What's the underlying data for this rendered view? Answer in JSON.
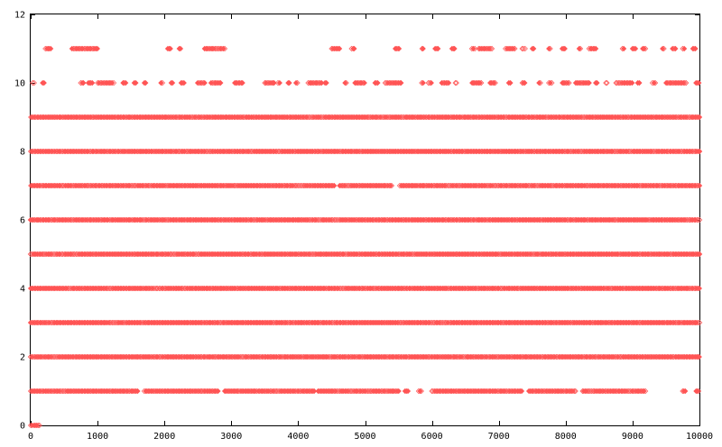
{
  "chart_data": {
    "type": "scatter",
    "title": "",
    "xlabel": "",
    "ylabel": "",
    "xlim": [
      0,
      10000
    ],
    "ylim": [
      0,
      12
    ],
    "x_ticks": [
      0,
      1000,
      2000,
      3000,
      4000,
      5000,
      6000,
      7000,
      8000,
      9000,
      10000
    ],
    "y_ticks": [
      0,
      2,
      4,
      6,
      8,
      10,
      12
    ],
    "x_tick_labels": [
      "0",
      "1000",
      "2000",
      "3000",
      "4000",
      "5000",
      "6000",
      "7000",
      "8000",
      "9000",
      "10000"
    ],
    "y_tick_labels": [
      "0",
      "2",
      "4",
      "6",
      "8",
      "10",
      "12"
    ],
    "grid": false,
    "marker": "diamond",
    "point_color": "#ff5555",
    "series": [
      {
        "points_by_level": {
          "0": [
            [
              0,
              30
            ],
            [
              50,
              130
            ]
          ],
          "1": [
            [
              0,
              1600
            ],
            [
              1700,
              2800
            ],
            [
              2900,
              4250
            ],
            [
              4300,
              5500
            ],
            [
              5600,
              5650
            ],
            [
              5800,
              5850
            ],
            [
              6000,
              7350
            ],
            [
              7450,
              8150
            ],
            [
              8250,
              9200
            ],
            [
              9750,
              9800
            ],
            [
              9950,
              10000
            ]
          ],
          "2": [
            [
              0,
              10000
            ]
          ],
          "3": [
            [
              0,
              10000
            ]
          ],
          "4": [
            [
              0,
              10000
            ]
          ],
          "5": [
            [
              0,
              10000
            ]
          ],
          "6": [
            [
              0,
              10000
            ]
          ],
          "7": [
            [
              0,
              4550
            ],
            [
              4620,
              5400
            ],
            [
              5520,
              10000
            ]
          ],
          "8": [
            [
              0,
              10000
            ]
          ],
          "9": [
            [
              0,
              10000
            ]
          ],
          "10": [
            [
              30,
              50
            ],
            [
              180,
              200
            ],
            [
              750,
              800
            ],
            [
              860,
              920
            ],
            [
              1000,
              1250
            ],
            [
              1380,
              1420
            ],
            [
              1550,
              1570
            ],
            [
              1700,
              1730
            ],
            [
              1950,
              1980
            ],
            [
              2100,
              2120
            ],
            [
              2250,
              2300
            ],
            [
              2500,
              2600
            ],
            [
              2700,
              2850
            ],
            [
              3050,
              3180
            ],
            [
              3500,
              3650
            ],
            [
              3700,
              3720
            ],
            [
              3850,
              3870
            ],
            [
              3970,
              4000
            ],
            [
              4150,
              4350
            ],
            [
              4400,
              4420
            ],
            [
              4700,
              4720
            ],
            [
              4850,
              5000
            ],
            [
              5150,
              5200
            ],
            [
              5300,
              5550
            ],
            [
              5850,
              5870
            ],
            [
              5950,
              6000
            ],
            [
              6150,
              6250
            ],
            [
              6350,
              6380
            ],
            [
              6600,
              6750
            ],
            [
              6870,
              6950
            ],
            [
              7150,
              7170
            ],
            [
              7350,
              7400
            ],
            [
              7600,
              7630
            ],
            [
              7750,
              7800
            ],
            [
              7950,
              8050
            ],
            [
              8150,
              8350
            ],
            [
              8450,
              8480
            ],
            [
              8600,
              8620
            ],
            [
              8750,
              9000
            ],
            [
              9080,
              9100
            ],
            [
              9300,
              9350
            ],
            [
              9500,
              9800
            ],
            [
              9950,
              10000
            ]
          ],
          "11": [
            [
              220,
              300
            ],
            [
              620,
              1000
            ],
            [
              2050,
              2100
            ],
            [
              2220,
              2240
            ],
            [
              2600,
              2900
            ],
            [
              4500,
              4620
            ],
            [
              4800,
              4850
            ],
            [
              5450,
              5520
            ],
            [
              5850,
              5870
            ],
            [
              6050,
              6100
            ],
            [
              6300,
              6350
            ],
            [
              6600,
              6650
            ],
            [
              6700,
              6900
            ],
            [
              7100,
              7250
            ],
            [
              7350,
              7400
            ],
            [
              7500,
              7520
            ],
            [
              7750,
              7770
            ],
            [
              7950,
              8000
            ],
            [
              8200,
              8220
            ],
            [
              8350,
              8450
            ],
            [
              8850,
              8870
            ],
            [
              9000,
              9050
            ],
            [
              9150,
              9200
            ],
            [
              9450,
              9470
            ],
            [
              9600,
              9650
            ],
            [
              9750,
              9770
            ],
            [
              9900,
              9950
            ]
          ]
        }
      }
    ]
  }
}
